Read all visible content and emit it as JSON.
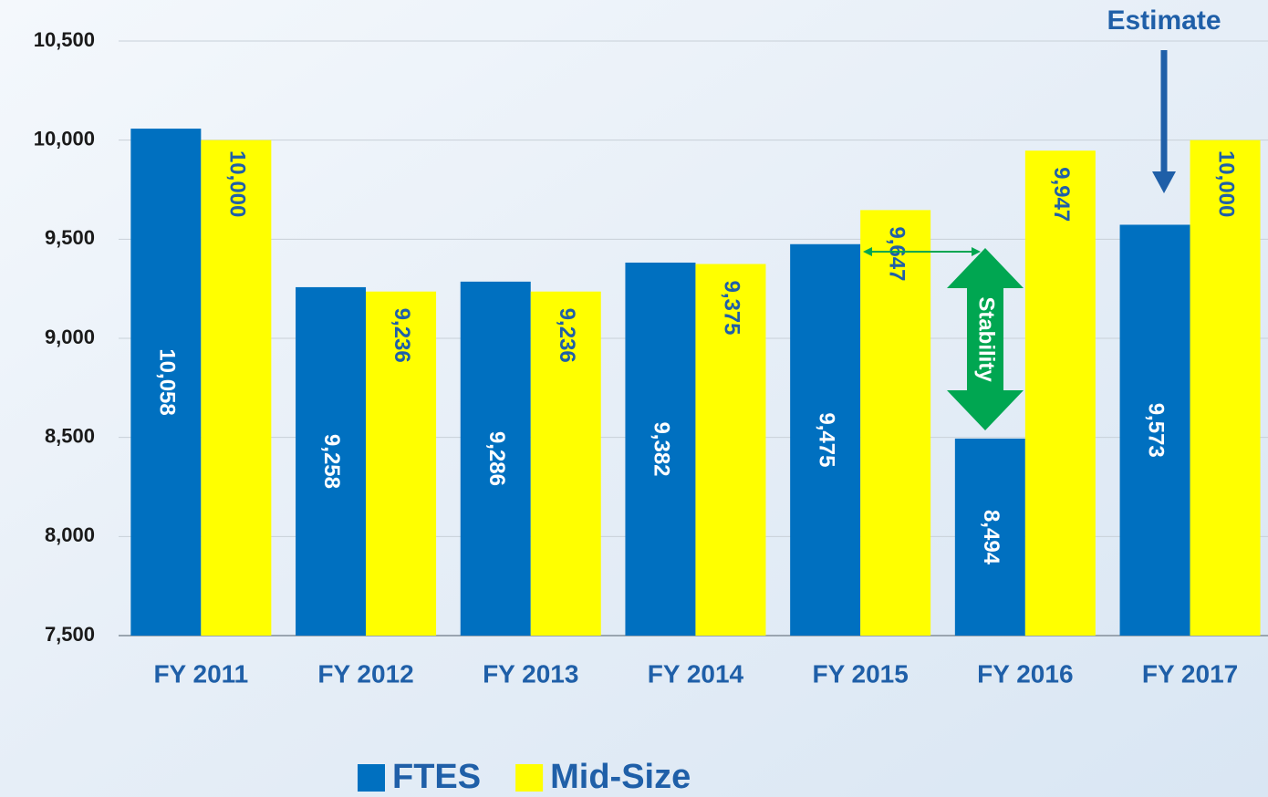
{
  "chart_data": {
    "type": "bar",
    "categories": [
      "FY 2011",
      "FY 2012",
      "FY 2013",
      "FY 2014",
      "FY 2015",
      "FY 2016",
      "FY 2017"
    ],
    "series": [
      {
        "name": "FTES",
        "color": "#0070c0",
        "values": [
          10058,
          9258,
          9286,
          9382,
          9475,
          8494,
          9573
        ],
        "value_labels": [
          "10,058",
          "9,258",
          "9,286",
          "9,382",
          "9,475",
          "8,494",
          "9,573"
        ]
      },
      {
        "name": "Mid-Size",
        "color": "#ffff00",
        "values": [
          10000,
          9236,
          9236,
          9375,
          9647,
          9947,
          10000
        ],
        "value_labels": [
          "10,000",
          "9,236",
          "9,236",
          "9,375",
          "9,647",
          "9,947",
          "10,000"
        ]
      }
    ],
    "ylim": [
      7500,
      10500
    ],
    "yticks": [
      {
        "value": 7500,
        "label": "7,500"
      },
      {
        "value": 8000,
        "label": "8,000"
      },
      {
        "value": 8500,
        "label": "8,500"
      },
      {
        "value": 9000,
        "label": "9,000"
      },
      {
        "value": 9500,
        "label": "9,500"
      },
      {
        "value": 10000,
        "label": "10,000"
      },
      {
        "value": 10500,
        "label": "10,500"
      }
    ],
    "grid": true,
    "annotations": [
      "Estimate",
      "Stability"
    ]
  }
}
